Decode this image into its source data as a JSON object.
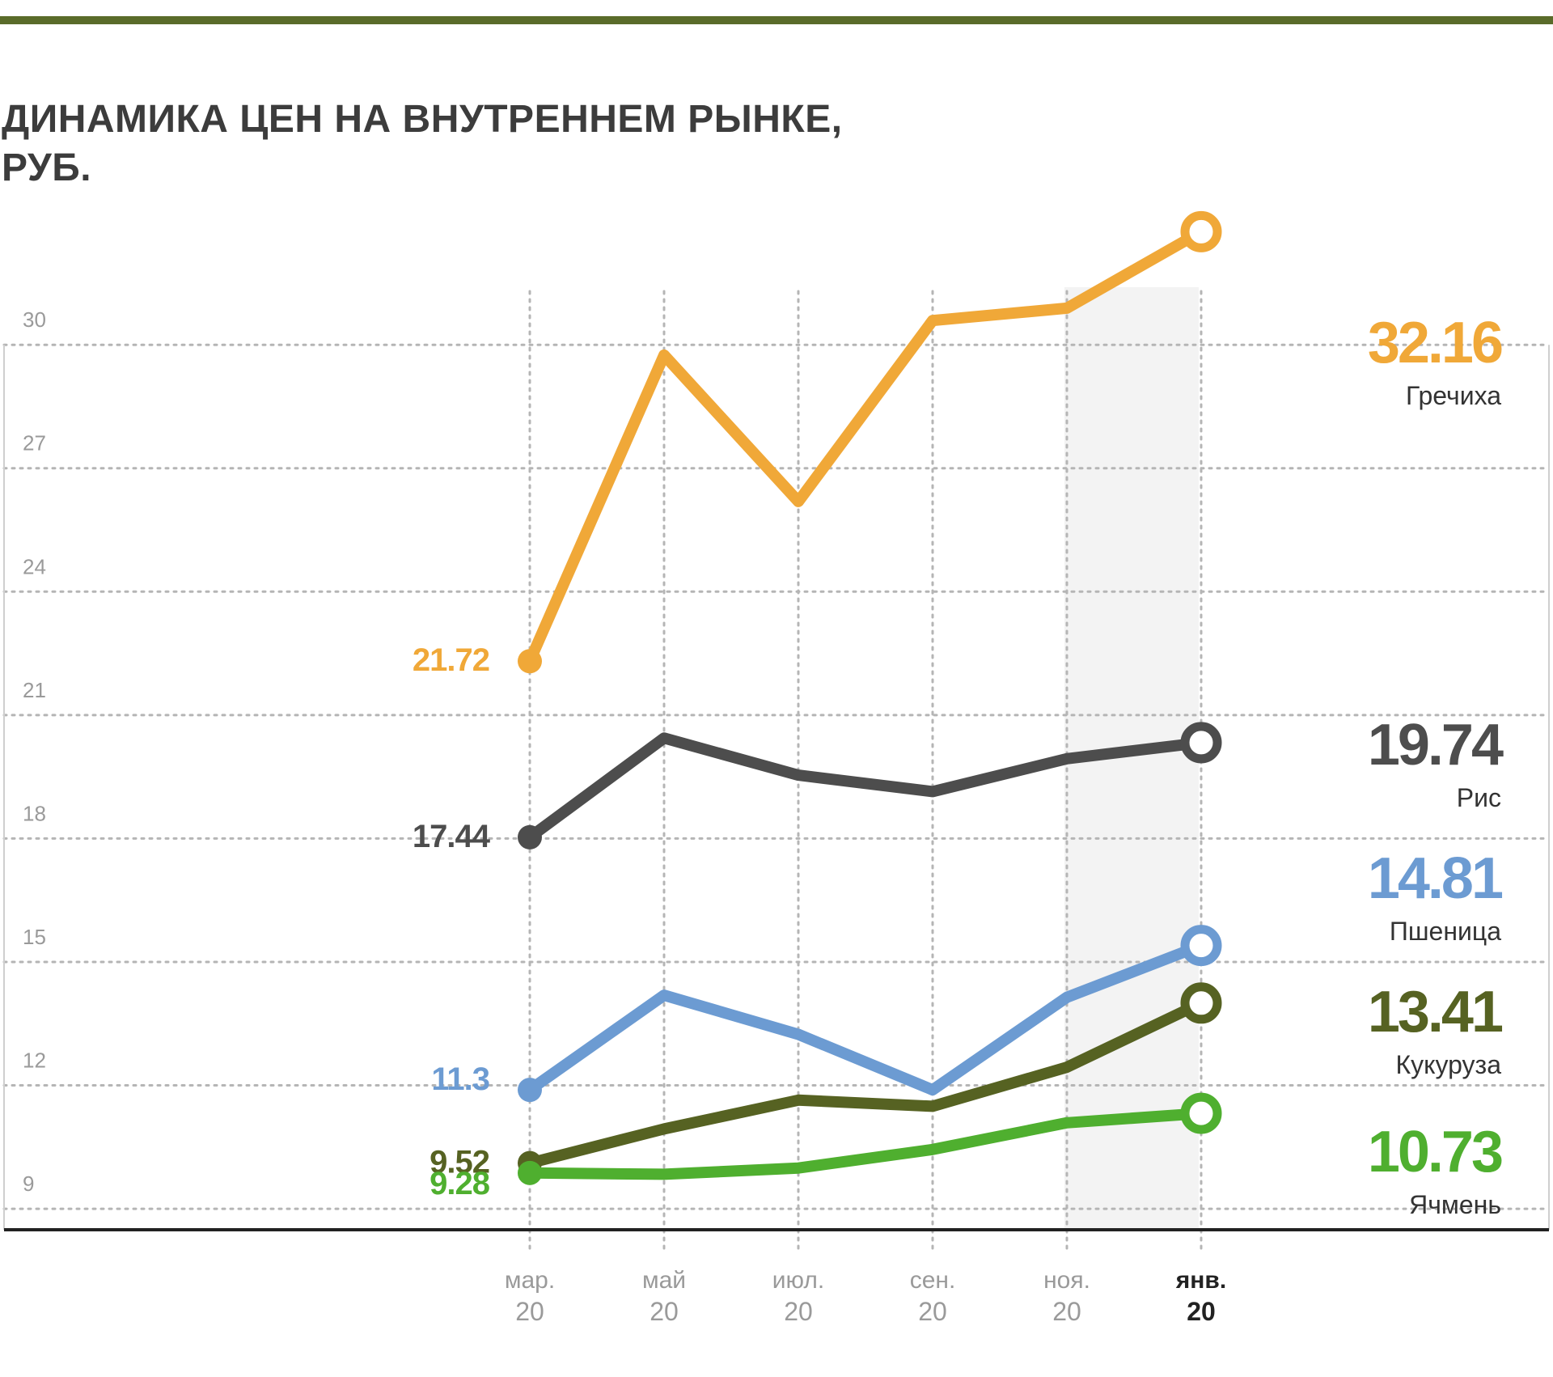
{
  "title": {
    "line1": "ДИНАМИКА ЦЕН НА ВНУТРЕННЕМ РЫНКЕ,",
    "line2": "РУБ."
  },
  "colors": {
    "rule": "#5a6b2a",
    "grid": "#b5b5b5",
    "axis": "#222222",
    "tick_text": "#9a9a9a",
    "highlight": "#f3f3f3"
  },
  "chart_data": {
    "type": "line",
    "x_categories": [
      {
        "month": "мар.",
        "year": "20",
        "bold": false
      },
      {
        "month": "май",
        "year": "20",
        "bold": false
      },
      {
        "month": "июл.",
        "year": "20",
        "bold": false
      },
      {
        "month": "сен.",
        "year": "20",
        "bold": false
      },
      {
        "month": "ноя.",
        "year": "20",
        "bold": false
      },
      {
        "month": "янв.",
        "year": "20",
        "bold": true
      }
    ],
    "y_ticks": [
      9,
      12,
      15,
      18,
      21,
      24,
      27,
      30
    ],
    "ylim": [
      7.9,
      31.4
    ],
    "grid": true,
    "highlight_category_index": 4,
    "series": [
      {
        "name": "Гречиха",
        "color": "#f0a838",
        "values": [
          21.72,
          29.16,
          25.6,
          30.0,
          30.3,
          32.16
        ],
        "start_label": "21.72",
        "end_label": "32.16"
      },
      {
        "name": "Рис",
        "color": "#4d4d4d",
        "values": [
          17.44,
          19.85,
          18.95,
          18.55,
          19.35,
          19.74
        ],
        "start_label": "17.44",
        "end_label": "19.74"
      },
      {
        "name": "Пшеница",
        "color": "#6c9bd2",
        "values": [
          11.3,
          13.6,
          12.65,
          11.3,
          13.55,
          14.81
        ],
        "start_label": "11.3",
        "end_label": "14.81"
      },
      {
        "name": "Кукуруза",
        "color": "#566222",
        "values": [
          9.52,
          10.35,
          11.05,
          10.9,
          11.85,
          13.41
        ],
        "start_label": "9.52",
        "end_label": "13.41"
      },
      {
        "name": "Ячмень",
        "color": "#4faf2f",
        "values": [
          9.28,
          9.25,
          9.4,
          9.85,
          10.5,
          10.73
        ],
        "start_label": "9.28",
        "end_label": "10.73"
      }
    ]
  }
}
